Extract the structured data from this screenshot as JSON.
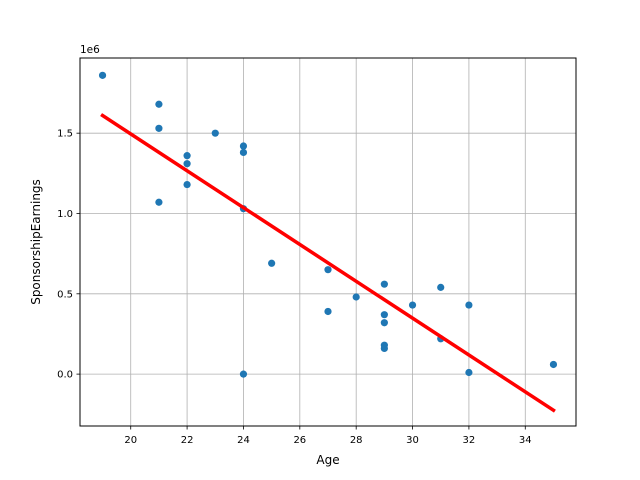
{
  "chart_data": {
    "type": "scatter",
    "title": "",
    "xlabel": "Age",
    "ylabel": "SponsorshipEarnings",
    "offset_label": "1e6",
    "xlim": [
      18.2,
      35.8
    ],
    "ylim": [
      -0.323,
      1.968
    ],
    "xticks": [
      20,
      22,
      24,
      26,
      28,
      30,
      32,
      34
    ],
    "xtick_labels": [
      "20",
      "22",
      "24",
      "26",
      "28",
      "30",
      "32",
      "34"
    ],
    "yticks": [
      0.0,
      0.5,
      1.0,
      1.5
    ],
    "ytick_labels": [
      "0.0",
      "0.5",
      "1.0",
      "1.5"
    ],
    "grid": true,
    "legend": "none",
    "point_color": "#1f77b4",
    "line_color": "#ff0000",
    "points": [
      {
        "x": 19,
        "y": 1.86
      },
      {
        "x": 21,
        "y": 1.68
      },
      {
        "x": 21,
        "y": 1.53
      },
      {
        "x": 21,
        "y": 1.07
      },
      {
        "x": 22,
        "y": 1.36
      },
      {
        "x": 22,
        "y": 1.31
      },
      {
        "x": 22,
        "y": 1.18
      },
      {
        "x": 23,
        "y": 1.5
      },
      {
        "x": 24,
        "y": 1.42
      },
      {
        "x": 24,
        "y": 1.38
      },
      {
        "x": 24,
        "y": 1.03
      },
      {
        "x": 24,
        "y": 0.0
      },
      {
        "x": 25,
        "y": 0.69
      },
      {
        "x": 27,
        "y": 0.65
      },
      {
        "x": 27,
        "y": 0.39
      },
      {
        "x": 28,
        "y": 0.48
      },
      {
        "x": 29,
        "y": 0.56
      },
      {
        "x": 29,
        "y": 0.37
      },
      {
        "x": 29,
        "y": 0.32
      },
      {
        "x": 29,
        "y": 0.18
      },
      {
        "x": 29,
        "y": 0.16
      },
      {
        "x": 30,
        "y": 0.43
      },
      {
        "x": 31,
        "y": 0.54
      },
      {
        "x": 31,
        "y": 0.22
      },
      {
        "x": 32,
        "y": 0.43
      },
      {
        "x": 32,
        "y": 0.01
      },
      {
        "x": 35,
        "y": 0.06
      }
    ],
    "fit_line": {
      "x": [
        19,
        35
      ],
      "y": [
        1.61,
        -0.225
      ]
    }
  }
}
